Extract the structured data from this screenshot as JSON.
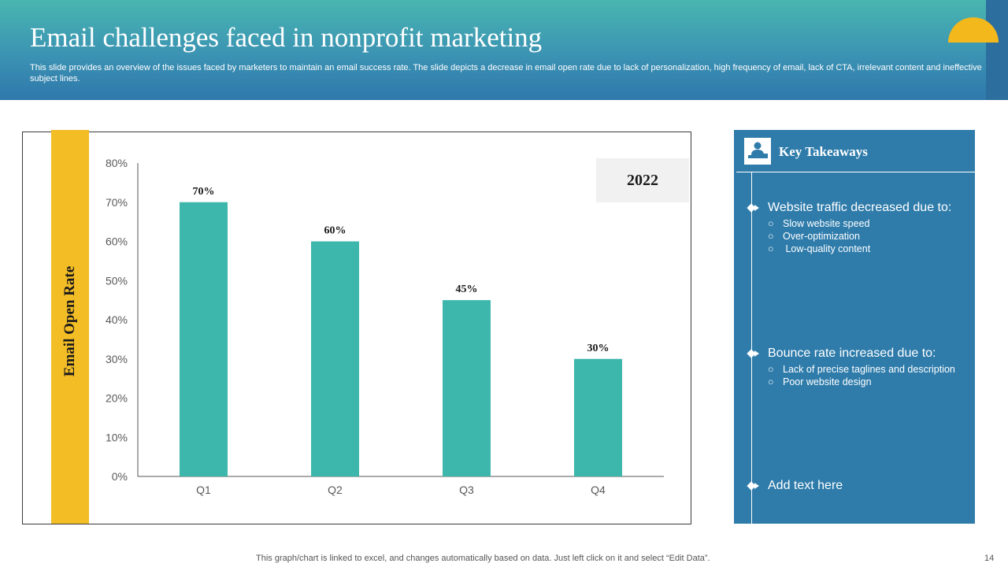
{
  "slide": {
    "title": "Email challenges  faced in nonprofit marketing",
    "subtitle": "This slide provides an overview of the issues faced by marketers to maintain an email success rate. The slide depicts a decrease in email open rate due to lack of personalization, high frequency of email, lack of CTA,  irrelevant content and ineffective subject lines.",
    "footer": "This graph/chart is linked to excel,  and changes automatically based on data. Just left click on it and select “Edit Data”.",
    "page_number": "14"
  },
  "colors": {
    "header_top": "#49b6b0",
    "header_bottom": "#2f78ac",
    "bar": "#3db7ab",
    "accent_yellow": "#f3bd26",
    "panel": "#2f7cab"
  },
  "chart_data": {
    "type": "bar",
    "title": "",
    "year_label": "2022",
    "xlabel": "",
    "ylabel": "Email Open Rate",
    "categories": [
      "Q1",
      "Q2",
      "Q3",
      "Q4"
    ],
    "values": [
      70,
      60,
      45,
      30
    ],
    "data_labels": [
      "70%",
      "60%",
      "45%",
      "30%"
    ],
    "ylim": [
      0,
      80
    ],
    "yticks": [
      0,
      10,
      20,
      30,
      40,
      50,
      60,
      70,
      80
    ],
    "ytick_labels": [
      "0%",
      "10%",
      "20%",
      "30%",
      "40%",
      "50%",
      "60%",
      "70%",
      "80%"
    ],
    "grid": false,
    "legend": "none"
  },
  "takeaways": {
    "icon": "presenter-icon",
    "title": "Key Takeaways",
    "items": [
      {
        "heading": "Website traffic decreased due to:",
        "bullets": [
          "Slow website speed",
          "Over-optimization",
          " Low-quality content"
        ]
      },
      {
        "heading": "Bounce rate increased due to:",
        "bullets": [
          "Lack of precise taglines and description",
          "Poor website design"
        ]
      },
      {
        "heading": "Add text here",
        "bullets": []
      }
    ]
  }
}
